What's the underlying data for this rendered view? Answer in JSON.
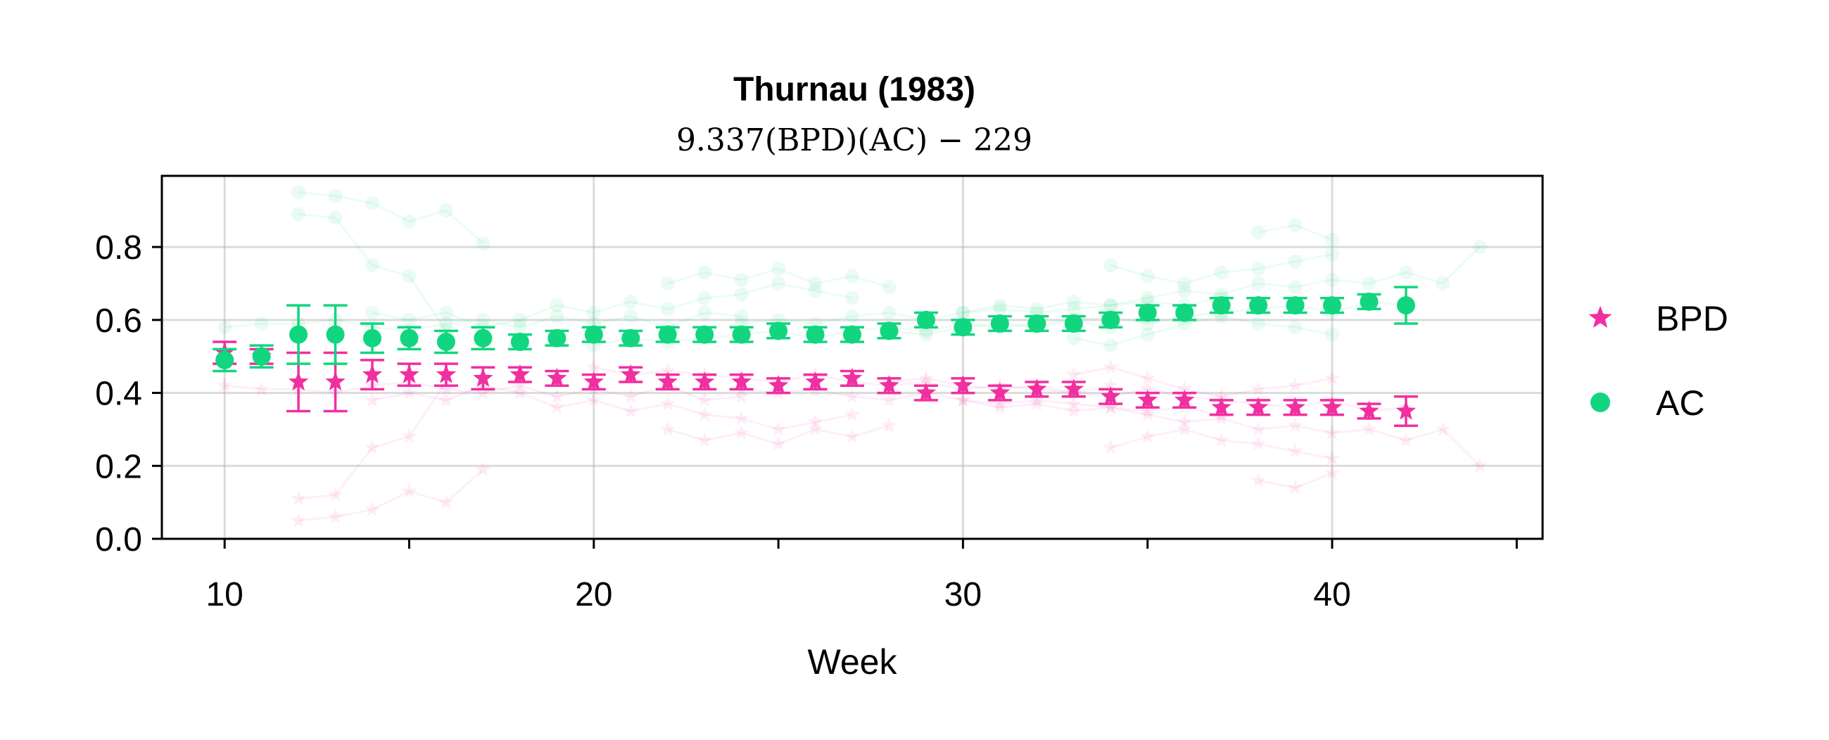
{
  "chart_data": {
    "type": "scatter",
    "title": "Thurnau (1983)",
    "subtitle": "9.337(BPD)(AC) − 229",
    "xlabel": "Week",
    "ylabel": "",
    "xlim": [
      8.3,
      45.7
    ],
    "ylim": [
      0.0,
      0.995
    ],
    "x_ticks": [
      10,
      20,
      30,
      40
    ],
    "x_minor_ticks": [
      15,
      25,
      35,
      45
    ],
    "y_ticks": [
      0.0,
      0.2,
      0.4,
      0.6,
      0.8
    ],
    "y_tick_labels": [
      "0.0",
      "0.2",
      "0.4",
      "0.6",
      "0.8"
    ],
    "grid": true,
    "legend_position": "right",
    "series": [
      {
        "name": "BPD",
        "marker": "star",
        "color": "#f02fa0",
        "x": [
          10,
          11,
          12,
          13,
          14,
          15,
          16,
          17,
          18,
          19,
          20,
          21,
          22,
          23,
          24,
          25,
          26,
          27,
          28,
          29,
          30,
          31,
          32,
          33,
          34,
          35,
          36,
          37,
          38,
          39,
          40,
          41,
          42
        ],
        "y": [
          0.51,
          0.5,
          0.43,
          0.43,
          0.45,
          0.45,
          0.45,
          0.44,
          0.45,
          0.44,
          0.43,
          0.45,
          0.43,
          0.43,
          0.43,
          0.42,
          0.43,
          0.44,
          0.42,
          0.4,
          0.42,
          0.4,
          0.41,
          0.41,
          0.39,
          0.38,
          0.38,
          0.36,
          0.36,
          0.36,
          0.36,
          0.35,
          0.35
        ],
        "err": [
          0.03,
          0.02,
          0.08,
          0.08,
          0.04,
          0.03,
          0.03,
          0.03,
          0.02,
          0.02,
          0.02,
          0.02,
          0.02,
          0.02,
          0.02,
          0.02,
          0.02,
          0.02,
          0.02,
          0.02,
          0.02,
          0.02,
          0.02,
          0.02,
          0.02,
          0.02,
          0.02,
          0.02,
          0.02,
          0.02,
          0.02,
          0.02,
          0.04
        ]
      },
      {
        "name": "AC",
        "marker": "circle",
        "color": "#12d67f",
        "x": [
          10,
          11,
          12,
          13,
          14,
          15,
          16,
          17,
          18,
          19,
          20,
          21,
          22,
          23,
          24,
          25,
          26,
          27,
          28,
          29,
          30,
          31,
          32,
          33,
          34,
          35,
          36,
          37,
          38,
          39,
          40,
          41,
          42
        ],
        "y": [
          0.49,
          0.5,
          0.56,
          0.56,
          0.55,
          0.55,
          0.54,
          0.55,
          0.54,
          0.55,
          0.56,
          0.55,
          0.56,
          0.56,
          0.56,
          0.57,
          0.56,
          0.56,
          0.57,
          0.6,
          0.58,
          0.59,
          0.59,
          0.59,
          0.6,
          0.62,
          0.62,
          0.64,
          0.64,
          0.64,
          0.64,
          0.65,
          0.64
        ],
        "err": [
          0.03,
          0.03,
          0.08,
          0.08,
          0.04,
          0.03,
          0.03,
          0.03,
          0.02,
          0.02,
          0.02,
          0.02,
          0.02,
          0.02,
          0.02,
          0.02,
          0.02,
          0.02,
          0.02,
          0.02,
          0.02,
          0.02,
          0.02,
          0.02,
          0.02,
          0.02,
          0.02,
          0.02,
          0.02,
          0.02,
          0.02,
          0.02,
          0.05
        ]
      }
    ],
    "background_traces": {
      "BPD": [
        {
          "x": [
            12,
            13,
            14,
            15,
            16,
            17
          ],
          "y": [
            0.05,
            0.06,
            0.08,
            0.13,
            0.1,
            0.19
          ]
        },
        {
          "x": [
            12,
            13,
            14,
            15,
            16
          ],
          "y": [
            0.11,
            0.12,
            0.25,
            0.28,
            0.43
          ]
        },
        {
          "x": [
            10,
            11,
            12,
            13,
            14,
            15,
            16,
            17,
            18,
            19,
            20,
            21,
            22,
            23,
            24
          ],
          "y": [
            0.42,
            0.41,
            0.41,
            0.4,
            0.42,
            0.43,
            0.41,
            0.4,
            0.42,
            0.39,
            0.41,
            0.39,
            0.42,
            0.38,
            0.39
          ]
        },
        {
          "x": [
            14,
            15,
            16,
            17,
            18,
            19,
            20,
            21,
            22,
            23,
            24,
            25,
            26,
            27
          ],
          "y": [
            0.38,
            0.4,
            0.38,
            0.42,
            0.4,
            0.36,
            0.38,
            0.35,
            0.37,
            0.34,
            0.33,
            0.3,
            0.32,
            0.34
          ]
        },
        {
          "x": [
            20,
            21,
            22,
            23,
            24,
            25,
            26,
            27,
            28,
            29,
            30,
            31,
            32,
            33,
            34
          ],
          "y": [
            0.47,
            0.45,
            0.46,
            0.45,
            0.44,
            0.43,
            0.45,
            0.43,
            0.42,
            0.43,
            0.41,
            0.42,
            0.41,
            0.4,
            0.42
          ]
        },
        {
          "x": [
            24,
            25,
            26,
            27,
            28,
            29,
            30,
            31,
            32,
            33,
            34,
            35,
            36,
            37
          ],
          "y": [
            0.41,
            0.4,
            0.41,
            0.39,
            0.38,
            0.4,
            0.38,
            0.37,
            0.38,
            0.37,
            0.36,
            0.35,
            0.36,
            0.34
          ]
        },
        {
          "x": [
            28,
            29,
            30,
            31,
            32,
            33,
            34,
            35,
            36,
            37,
            38,
            39,
            40,
            41,
            42
          ],
          "y": [
            0.43,
            0.44,
            0.42,
            0.41,
            0.42,
            0.4,
            0.39,
            0.41,
            0.39,
            0.38,
            0.37,
            0.36,
            0.38,
            0.35,
            0.36
          ]
        },
        {
          "x": [
            30,
            31,
            32,
            33,
            34,
            35,
            36,
            37,
            38,
            39,
            40,
            41,
            42,
            43,
            44
          ],
          "y": [
            0.38,
            0.36,
            0.37,
            0.35,
            0.36,
            0.34,
            0.32,
            0.33,
            0.3,
            0.31,
            0.29,
            0.3,
            0.27,
            0.3,
            0.2
          ]
        },
        {
          "x": [
            34,
            35,
            36,
            37,
            38,
            39,
            40
          ],
          "y": [
            0.25,
            0.28,
            0.3,
            0.27,
            0.26,
            0.24,
            0.22
          ]
        },
        {
          "x": [
            33,
            34,
            35,
            36,
            37,
            38,
            39,
            40
          ],
          "y": [
            0.45,
            0.47,
            0.44,
            0.41,
            0.39,
            0.41,
            0.42,
            0.44
          ]
        },
        {
          "x": [
            22,
            23,
            24,
            25,
            26,
            27,
            28
          ],
          "y": [
            0.3,
            0.27,
            0.29,
            0.26,
            0.3,
            0.28,
            0.31
          ]
        },
        {
          "x": [
            38,
            39,
            40
          ],
          "y": [
            0.16,
            0.14,
            0.18
          ]
        }
      ],
      "AC": [
        {
          "x": [
            12,
            13,
            14,
            15,
            16,
            17
          ],
          "y": [
            0.95,
            0.94,
            0.92,
            0.87,
            0.9,
            0.81
          ]
        },
        {
          "x": [
            12,
            13,
            14,
            15,
            16
          ],
          "y": [
            0.89,
            0.88,
            0.75,
            0.72,
            0.57
          ]
        },
        {
          "x": [
            10,
            11,
            12,
            13,
            14,
            15,
            16,
            17,
            18,
            19,
            20,
            21,
            22,
            23,
            24
          ],
          "y": [
            0.58,
            0.59,
            0.59,
            0.6,
            0.58,
            0.57,
            0.59,
            0.6,
            0.58,
            0.61,
            0.59,
            0.61,
            0.58,
            0.62,
            0.61
          ]
        },
        {
          "x": [
            14,
            15,
            16,
            17,
            18,
            19,
            20,
            21,
            22,
            23,
            24,
            25,
            26,
            27
          ],
          "y": [
            0.62,
            0.6,
            0.62,
            0.58,
            0.6,
            0.64,
            0.62,
            0.65,
            0.63,
            0.66,
            0.67,
            0.7,
            0.68,
            0.66
          ]
        },
        {
          "x": [
            20,
            21,
            22,
            23,
            24,
            25,
            26,
            27,
            28,
            29,
            30,
            31,
            32,
            33,
            34
          ],
          "y": [
            0.53,
            0.55,
            0.54,
            0.55,
            0.56,
            0.57,
            0.55,
            0.57,
            0.58,
            0.57,
            0.59,
            0.58,
            0.59,
            0.6,
            0.58
          ]
        },
        {
          "x": [
            24,
            25,
            26,
            27,
            28,
            29,
            30,
            31,
            32,
            33,
            34,
            35,
            36,
            37
          ],
          "y": [
            0.59,
            0.6,
            0.59,
            0.61,
            0.62,
            0.6,
            0.62,
            0.63,
            0.62,
            0.63,
            0.64,
            0.65,
            0.64,
            0.66
          ]
        },
        {
          "x": [
            28,
            29,
            30,
            31,
            32,
            33,
            34,
            35,
            36,
            37,
            38,
            39,
            40,
            41,
            42
          ],
          "y": [
            0.57,
            0.56,
            0.58,
            0.59,
            0.58,
            0.6,
            0.61,
            0.59,
            0.61,
            0.62,
            0.63,
            0.64,
            0.62,
            0.65,
            0.64
          ]
        },
        {
          "x": [
            30,
            31,
            32,
            33,
            34,
            35,
            36,
            37,
            38,
            39,
            40,
            41,
            42,
            43,
            44
          ],
          "y": [
            0.62,
            0.64,
            0.63,
            0.65,
            0.64,
            0.66,
            0.68,
            0.67,
            0.7,
            0.69,
            0.71,
            0.7,
            0.73,
            0.7,
            0.8
          ]
        },
        {
          "x": [
            34,
            35,
            36,
            37,
            38,
            39,
            40
          ],
          "y": [
            0.75,
            0.72,
            0.7,
            0.73,
            0.74,
            0.76,
            0.78
          ]
        },
        {
          "x": [
            33,
            34,
            35,
            36,
            37,
            38,
            39,
            40
          ],
          "y": [
            0.55,
            0.53,
            0.56,
            0.59,
            0.61,
            0.59,
            0.58,
            0.56
          ]
        },
        {
          "x": [
            22,
            23,
            24,
            25,
            26,
            27,
            28
          ],
          "y": [
            0.7,
            0.73,
            0.71,
            0.74,
            0.7,
            0.72,
            0.69
          ]
        },
        {
          "x": [
            38,
            39,
            40
          ],
          "y": [
            0.84,
            0.86,
            0.82
          ]
        }
      ]
    }
  }
}
